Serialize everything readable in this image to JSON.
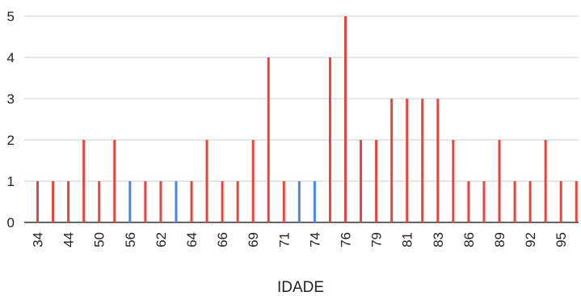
{
  "chart_data": {
    "type": "bar",
    "xlabel": "IDADE",
    "ylabel": "",
    "ylim": [
      0,
      5
    ],
    "yticks": [
      0,
      1,
      2,
      3,
      4,
      5
    ],
    "grid": true,
    "legend": "none",
    "colors": {
      "primary": "#e8453c",
      "secondary": "#4a86e8",
      "grid": "#cccccc",
      "axis": "#333333"
    },
    "categories": [
      "34",
      "",
      "44",
      "",
      "50",
      "",
      "56",
      "",
      "62",
      "",
      "64",
      "",
      "66",
      "",
      "69",
      "",
      "71",
      "",
      "74",
      "",
      "76",
      "",
      "79",
      "",
      "81",
      "",
      "83",
      "",
      "86",
      "",
      "89",
      "",
      "92",
      "",
      "95",
      ""
    ],
    "bars": [
      {
        "value": 1,
        "color": "#e8453c"
      },
      {
        "value": 1,
        "color": "#e8453c"
      },
      {
        "value": 1,
        "color": "#e8453c"
      },
      {
        "value": 2,
        "color": "#e8453c"
      },
      {
        "value": 1,
        "color": "#e8453c"
      },
      {
        "value": 2,
        "color": "#e8453c"
      },
      {
        "value": 1,
        "color": "#4a86e8"
      },
      {
        "value": 1,
        "color": "#e8453c"
      },
      {
        "value": 1,
        "color": "#e8453c"
      },
      {
        "value": 1,
        "color": "#4a86e8"
      },
      {
        "value": 1,
        "color": "#e8453c"
      },
      {
        "value": 2,
        "color": "#e8453c"
      },
      {
        "value": 1,
        "color": "#e8453c"
      },
      {
        "value": 1,
        "color": "#e8453c"
      },
      {
        "value": 2,
        "color": "#e8453c"
      },
      {
        "value": 4,
        "color": "#e8453c"
      },
      {
        "value": 1,
        "color": "#e8453c"
      },
      {
        "value": 1,
        "color": "#4a86e8"
      },
      {
        "value": 1,
        "color": "#4a86e8"
      },
      {
        "value": 4,
        "color": "#e8453c"
      },
      {
        "value": 5,
        "color": "#e8453c"
      },
      {
        "value": 2,
        "color": "#e8453c"
      },
      {
        "value": 2,
        "color": "#e8453c"
      },
      {
        "value": 3,
        "color": "#e8453c"
      },
      {
        "value": 3,
        "color": "#e8453c"
      },
      {
        "value": 3,
        "color": "#e8453c"
      },
      {
        "value": 3,
        "color": "#e8453c"
      },
      {
        "value": 2,
        "color": "#e8453c"
      },
      {
        "value": 1,
        "color": "#e8453c"
      },
      {
        "value": 1,
        "color": "#e8453c"
      },
      {
        "value": 2,
        "color": "#e8453c"
      },
      {
        "value": 1,
        "color": "#e8453c"
      },
      {
        "value": 1,
        "color": "#e8453c"
      },
      {
        "value": 2,
        "color": "#e8453c"
      },
      {
        "value": 1,
        "color": "#e8453c"
      },
      {
        "value": 1,
        "color": "#e8453c"
      }
    ]
  }
}
